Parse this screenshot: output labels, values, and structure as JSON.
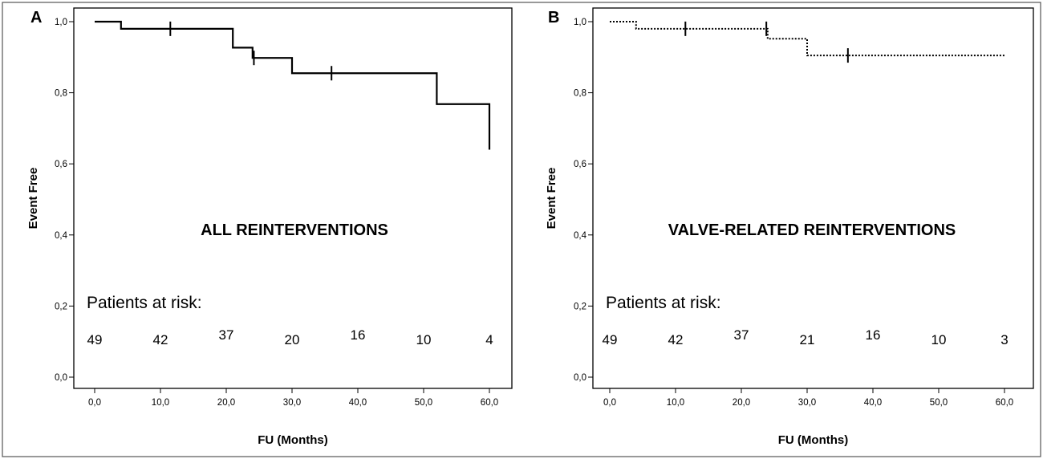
{
  "chart_data": [
    {
      "type": "line",
      "panel_label": "A",
      "annotation": "ALL REINTERVENTIONS",
      "xlabel": "FU (Months)",
      "ylabel": "Event Free",
      "xlim": [
        0,
        60
      ],
      "ylim": [
        0,
        1
      ],
      "xticks": [
        "0,0",
        "10,0",
        "20,0",
        "30,0",
        "40,0",
        "50,0",
        "60,0"
      ],
      "yticks": [
        "0,0",
        "0,2",
        "0,4",
        "0,6",
        "0,8",
        "1,0"
      ],
      "line_style": "solid",
      "step_x": [
        0,
        4,
        21,
        24,
        30,
        52,
        60
      ],
      "step_y": [
        1.0,
        0.98,
        0.927,
        0.898,
        0.855,
        0.768,
        0.64
      ],
      "censor_x": [
        11.5,
        24.2,
        36
      ],
      "risk_title": "Patients at risk:",
      "risk_x": [
        0,
        10,
        20,
        30,
        40,
        50,
        60
      ],
      "risk_values": [
        "49",
        "42",
        "37",
        "20",
        "16",
        "10",
        "4"
      ]
    },
    {
      "type": "line",
      "panel_label": "B",
      "annotation": "VALVE-RELATED REINTERVENTIONS",
      "xlabel": "FU (Months)",
      "ylabel": "Event Free",
      "xlim": [
        0,
        60
      ],
      "ylim": [
        0,
        1
      ],
      "xticks": [
        "0,0",
        "10,0",
        "20,0",
        "30,0",
        "40,0",
        "50,0",
        "60,0"
      ],
      "yticks": [
        "0,0",
        "0,2",
        "0,4",
        "0,6",
        "0,8",
        "1,0"
      ],
      "line_style": "dotted",
      "step_x": [
        0,
        4,
        24,
        30,
        60
      ],
      "step_y": [
        1.0,
        0.98,
        0.952,
        0.905,
        0.905
      ],
      "censor_x": [
        11.5,
        23.8,
        36.2
      ],
      "risk_title": "Patients at risk:",
      "risk_x": [
        0,
        10,
        20,
        30,
        40,
        50,
        60
      ],
      "risk_values": [
        "49",
        "42",
        "37",
        "21",
        "16",
        "10",
        "3"
      ]
    }
  ]
}
